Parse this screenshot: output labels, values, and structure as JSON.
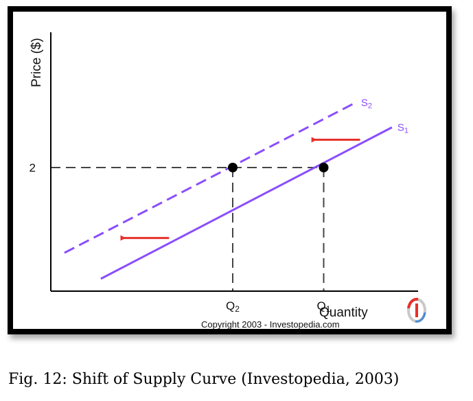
{
  "chart_data": {
    "type": "line",
    "xlabel": "Quantity",
    "ylabel": "Price ($)",
    "x_ticks": [
      {
        "label_base": "Q",
        "label_sub": "2",
        "x": 2
      },
      {
        "label_base": "Q",
        "label_sub": "1",
        "x": 3
      }
    ],
    "y_ticks": [
      {
        "label": "2",
        "y": 2
      }
    ],
    "xlim": [
      0,
      4
    ],
    "ylim": [
      0,
      4
    ],
    "series": [
      {
        "name_base": "S",
        "name_sub": "1",
        "style": "solid",
        "color": "#8a4dff",
        "x": [
          0.55,
          3.75
        ],
        "y": [
          0.2,
          2.65
        ]
      },
      {
        "name_base": "S",
        "name_sub": "2",
        "style": "dashed",
        "color": "#8a4dff",
        "x": [
          0.15,
          3.35
        ],
        "y": [
          0.62,
          3.05
        ]
      }
    ],
    "equilibrium_points": [
      {
        "x": 2,
        "y": 2
      },
      {
        "x": 3,
        "y": 2
      }
    ],
    "shift_arrows": [
      {
        "from": [
          3.4,
          2.45
        ],
        "to": [
          2.85,
          2.45
        ],
        "color": "#e8302a"
      },
      {
        "from": [
          1.3,
          0.86
        ],
        "to": [
          0.75,
          0.86
        ],
        "color": "#e8302a"
      }
    ],
    "grid": false
  },
  "copyright": "Copyright 2003 - Investopedia.com",
  "logo_icon": "investopedia-logo-icon",
  "caption": "Fig. 12: Shift of Supply Curve (Investopedia, 2003)"
}
